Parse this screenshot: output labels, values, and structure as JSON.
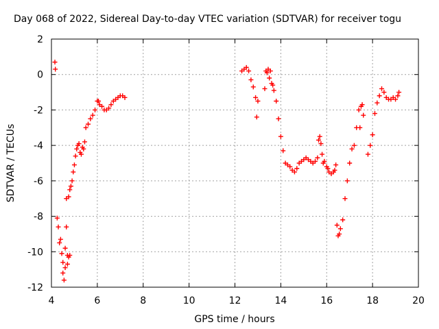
{
  "chart_data": {
    "type": "scatter",
    "title": "Day 068 of 2022, Sidereal Day-to-day VTEC variation (SDTVAR) for receiver togu",
    "xlabel": "GPS time / hours",
    "ylabel": "SDTVAR / TECUs",
    "xlim": [
      4,
      20
    ],
    "ylim": [
      -12,
      2
    ],
    "xticks": [
      "4",
      "6",
      "8",
      "10",
      "12",
      "14",
      "16",
      "18",
      "20"
    ],
    "yticks": [
      "2",
      "0",
      "-2",
      "-4",
      "-6",
      "-8",
      "-10",
      "-12"
    ],
    "grid": true,
    "marker": "+",
    "color": "#ff0000",
    "series": [
      {
        "name": "SDTVAR",
        "x": [
          4.15,
          4.17,
          4.25,
          4.3,
          4.35,
          4.4,
          4.45,
          4.5,
          4.5,
          4.55,
          4.6,
          4.6,
          4.65,
          4.65,
          4.7,
          4.7,
          4.75,
          4.75,
          4.8,
          4.8,
          4.85,
          4.9,
          4.95,
          5.0,
          5.05,
          5.1,
          5.15,
          5.2,
          5.25,
          5.3,
          5.35,
          5.4,
          5.45,
          5.5,
          5.6,
          5.7,
          5.8,
          5.9,
          6.0,
          6.05,
          6.1,
          6.2,
          6.3,
          6.4,
          6.5,
          6.6,
          6.7,
          6.8,
          6.9,
          7.0,
          7.1,
          7.2,
          12.3,
          12.4,
          12.5,
          12.6,
          12.7,
          12.8,
          12.9,
          13.0,
          12.95,
          13.3,
          13.35,
          13.4,
          13.45,
          13.5,
          13.55,
          13.6,
          13.65,
          13.7,
          13.8,
          13.9,
          14.0,
          14.1,
          14.2,
          14.3,
          14.4,
          14.5,
          14.6,
          14.7,
          14.8,
          14.9,
          15.0,
          15.1,
          15.2,
          15.3,
          15.4,
          15.5,
          15.6,
          15.7,
          15.65,
          15.75,
          15.8,
          15.85,
          15.9,
          16.0,
          16.05,
          16.1,
          16.2,
          16.3,
          16.35,
          16.4,
          16.45,
          16.5,
          16.55,
          16.6,
          16.7,
          16.8,
          16.9,
          17.0,
          17.1,
          17.2,
          17.3,
          17.4,
          17.45,
          17.5,
          17.55,
          17.6,
          17.8,
          17.9,
          18.0,
          18.1,
          18.2,
          18.3,
          18.4,
          18.5,
          18.6,
          18.7,
          18.8,
          18.9,
          19.0,
          19.1,
          19.15
        ],
        "y": [
          0.7,
          0.3,
          -8.1,
          -8.6,
          -9.5,
          -9.3,
          -10.1,
          -10.6,
          -11.2,
          -11.6,
          -10.9,
          -9.8,
          -8.6,
          -7.0,
          -10.7,
          -10.2,
          -6.9,
          -10.3,
          -6.5,
          -10.2,
          -6.3,
          -6.0,
          -5.5,
          -5.1,
          -4.6,
          -4.2,
          -4.0,
          -3.9,
          -4.4,
          -4.5,
          -4.1,
          -4.2,
          -3.8,
          -3.0,
          -2.8,
          -2.5,
          -2.3,
          -2.0,
          -1.5,
          -1.5,
          -1.7,
          -1.8,
          -2.0,
          -2.0,
          -1.9,
          -1.7,
          -1.5,
          -1.4,
          -1.3,
          -1.2,
          -1.2,
          -1.3,
          0.2,
          0.3,
          0.4,
          0.2,
          -0.3,
          -0.7,
          -1.3,
          -1.5,
          -2.4,
          -0.8,
          0.2,
          0.1,
          0.3,
          -0.2,
          0.2,
          -0.5,
          -0.6,
          -0.9,
          -1.5,
          -2.5,
          -3.5,
          -4.3,
          -5.0,
          -5.1,
          -5.2,
          -5.4,
          -5.5,
          -5.3,
          -5.0,
          -4.9,
          -4.8,
          -4.7,
          -4.8,
          -4.9,
          -5.0,
          -4.9,
          -4.7,
          -3.5,
          -3.7,
          -3.9,
          -4.5,
          -5.0,
          -4.9,
          -5.2,
          -5.3,
          -5.5,
          -5.6,
          -5.5,
          -5.4,
          -5.1,
          -8.5,
          -9.1,
          -9.0,
          -8.7,
          -8.2,
          -7.0,
          -6.0,
          -5.0,
          -4.2,
          -4.0,
          -3.0,
          -2.0,
          -3.0,
          -1.8,
          -1.7,
          -2.3,
          -4.5,
          -4.0,
          -3.4,
          -2.2,
          -1.6,
          -1.2,
          -0.8,
          -1.0,
          -1.3,
          -1.4,
          -1.4,
          -1.3,
          -1.4,
          -1.2,
          -1.0
        ]
      }
    ]
  }
}
